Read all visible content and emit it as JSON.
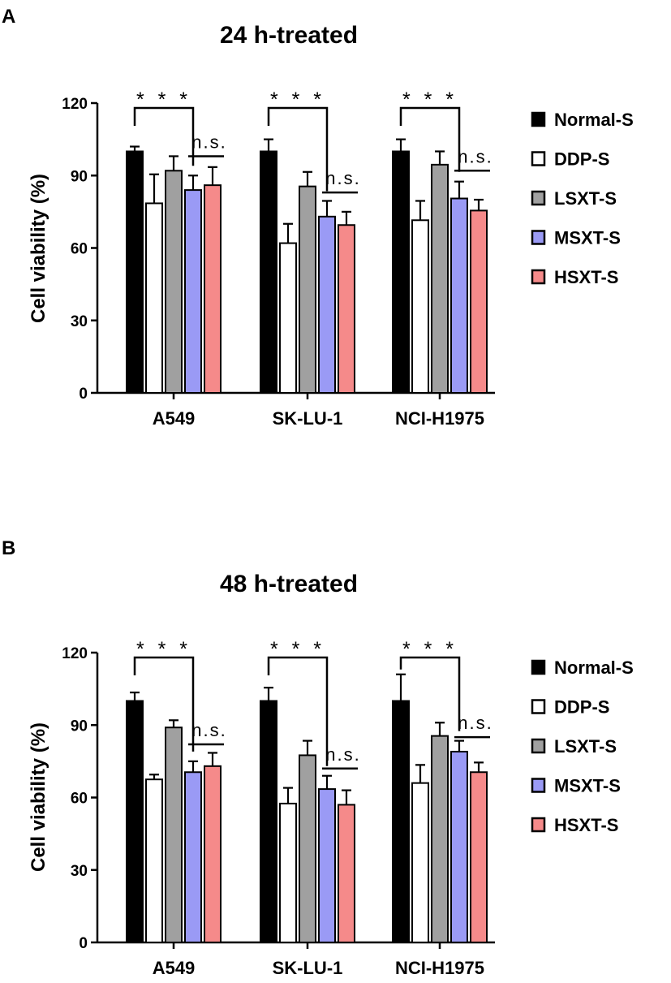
{
  "series_colors": {
    "Normal-S": "#000000",
    "DDP-S": "#ffffff",
    "LSXT-S": "#a0a0a0",
    "MSXT-S": "#9a9af5",
    "HSXT-S": "#f58a8a"
  },
  "chart_data": [
    {
      "panel": "A",
      "type": "bar",
      "title": "24 h-treated",
      "xlabel": "",
      "ylabel": "Cell viability (%)",
      "ylim": [
        0,
        120
      ],
      "yticks": [
        0,
        30,
        60,
        90,
        120
      ],
      "categories": [
        "A549",
        "SK-LU-1",
        "NCI-H1975"
      ],
      "series": [
        {
          "name": "Normal-S",
          "values": [
            100,
            100,
            100
          ],
          "errors": [
            2,
            5,
            5
          ]
        },
        {
          "name": "DDP-S",
          "values": [
            78.5,
            62,
            71.5
          ],
          "errors": [
            12,
            8,
            8
          ]
        },
        {
          "name": "LSXT-S",
          "values": [
            92,
            85.5,
            94.5
          ],
          "errors": [
            6,
            6,
            5.5
          ]
        },
        {
          "name": "MSXT-S",
          "values": [
            84,
            73,
            80.5
          ],
          "errors": [
            6,
            6.5,
            7
          ]
        },
        {
          "name": "HSXT-S",
          "values": [
            86,
            69.5,
            75.5
          ],
          "errors": [
            7.5,
            5.5,
            4.5
          ]
        }
      ],
      "annotations": [
        {
          "text": "* * *",
          "category": "A549",
          "from": "Normal-S",
          "to": "MSXT-S",
          "y_level": 118
        },
        {
          "text": "n.s.",
          "category": "A549",
          "from": "MSXT-S",
          "to": "HSXT-S",
          "y_level": 98
        },
        {
          "text": "* * *",
          "category": "SK-LU-1",
          "from": "Normal-S",
          "to": "MSXT-S",
          "y_level": 118
        },
        {
          "text": "n.s.",
          "category": "SK-LU-1",
          "from": "MSXT-S",
          "to": "HSXT-S",
          "y_level": 83
        },
        {
          "text": "* * *",
          "category": "NCI-H1975",
          "from": "Normal-S",
          "to": "MSXT-S",
          "y_level": 118
        },
        {
          "text": "n.s.",
          "category": "NCI-H1975",
          "from": "MSXT-S",
          "to": "HSXT-S",
          "y_level": 92
        }
      ],
      "legend": [
        "Normal-S",
        "DDP-S",
        "LSXT-S",
        "MSXT-S",
        "HSXT-S"
      ]
    },
    {
      "panel": "B",
      "type": "bar",
      "title": "48 h-treated",
      "xlabel": "",
      "ylabel": "Cell viability (%)",
      "ylim": [
        0,
        120
      ],
      "yticks": [
        0,
        30,
        60,
        90,
        120
      ],
      "categories": [
        "A549",
        "SK-LU-1",
        "NCI-H1975"
      ],
      "series": [
        {
          "name": "Normal-S",
          "values": [
            100,
            100,
            100
          ],
          "errors": [
            3.5,
            5.5,
            11
          ]
        },
        {
          "name": "DDP-S",
          "values": [
            67.5,
            57.5,
            66
          ],
          "errors": [
            2,
            6.5,
            7.5
          ]
        },
        {
          "name": "LSXT-S",
          "values": [
            89,
            77.5,
            85.5
          ],
          "errors": [
            3,
            6,
            5.5
          ]
        },
        {
          "name": "MSXT-S",
          "values": [
            70.5,
            63.5,
            79
          ],
          "errors": [
            4.5,
            5.5,
            4.5
          ]
        },
        {
          "name": "HSXT-S",
          "values": [
            73,
            57,
            70.5
          ],
          "errors": [
            5.5,
            6,
            4
          ]
        }
      ],
      "annotations": [
        {
          "text": "* * *",
          "category": "A549",
          "from": "Normal-S",
          "to": "MSXT-S",
          "y_level": 118
        },
        {
          "text": "n.s.",
          "category": "A549",
          "from": "MSXT-S",
          "to": "HSXT-S",
          "y_level": 82
        },
        {
          "text": "* * *",
          "category": "SK-LU-1",
          "from": "Normal-S",
          "to": "MSXT-S",
          "y_level": 118
        },
        {
          "text": "n.s.",
          "category": "SK-LU-1",
          "from": "MSXT-S",
          "to": "HSXT-S",
          "y_level": 72
        },
        {
          "text": "* * *",
          "category": "NCI-H1975",
          "from": "Normal-S",
          "to": "MSXT-S",
          "y_level": 118
        },
        {
          "text": "n.s.",
          "category": "NCI-H1975",
          "from": "MSXT-S",
          "to": "HSXT-S",
          "y_level": 85
        }
      ],
      "legend": [
        "Normal-S",
        "DDP-S",
        "LSXT-S",
        "MSXT-S",
        "HSXT-S"
      ]
    }
  ]
}
